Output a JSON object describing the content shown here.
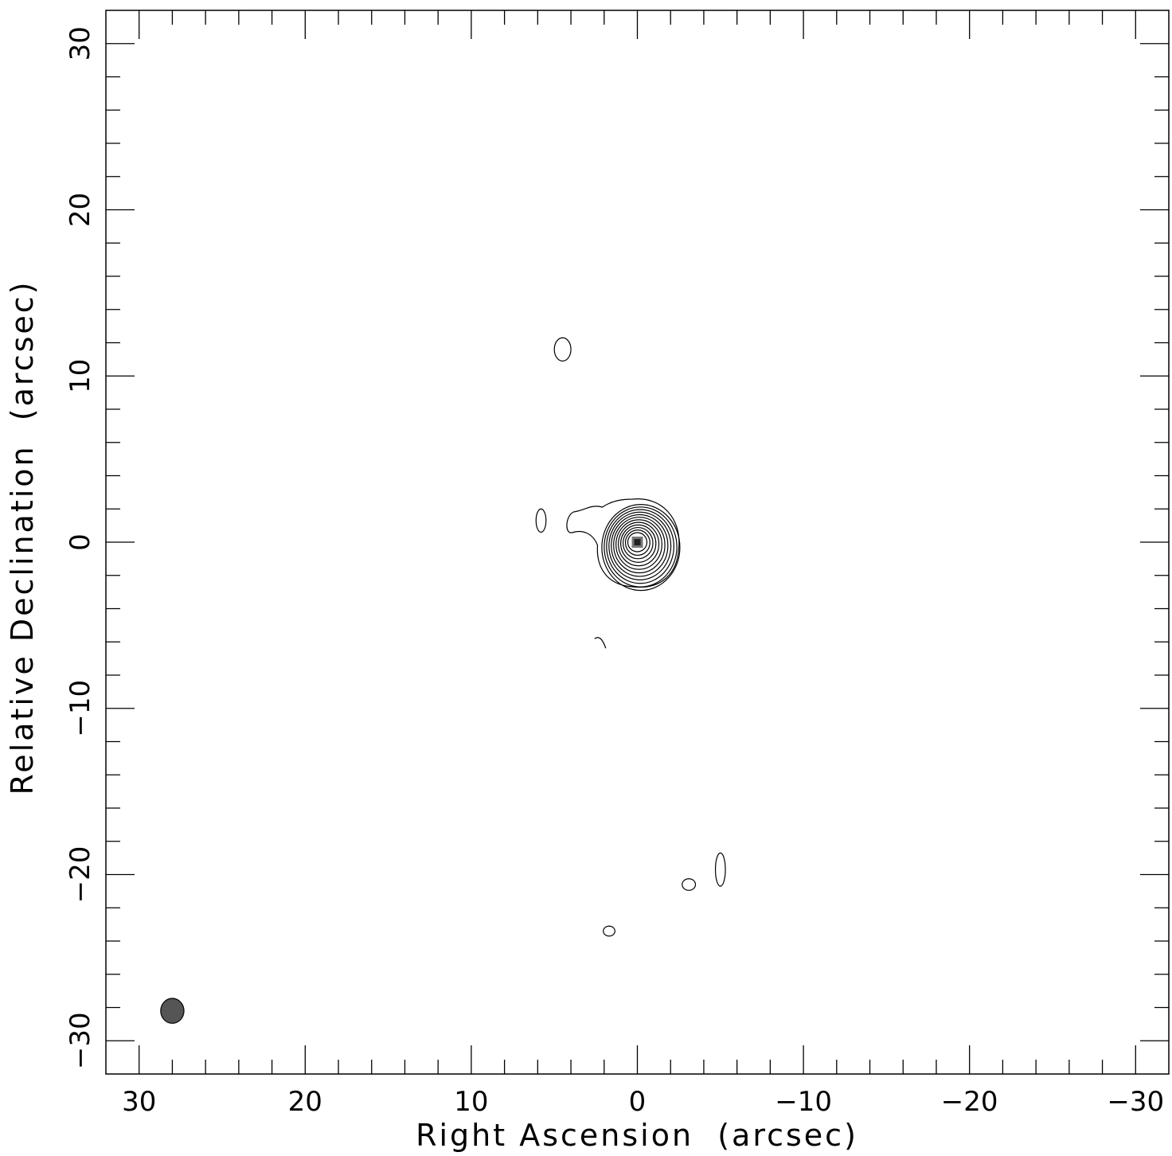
{
  "chart_data": {
    "type": "contour",
    "xlabel": "Right Ascension  (arcsec)",
    "ylabel": "Relative Declination  (arcsec)",
    "xlim": [
      32,
      -32
    ],
    "ylim": [
      -32,
      32
    ],
    "xticks": [
      30,
      20,
      10,
      0,
      -10,
      -20,
      -30
    ],
    "yticks": [
      30,
      20,
      10,
      0,
      -10,
      -20,
      -30
    ],
    "xtick_labels": [
      "30",
      "20",
      "10",
      "0",
      "−10",
      "−20",
      "−30"
    ],
    "ytick_labels": [
      "30",
      "20",
      "10",
      "0",
      "−10",
      "−20",
      "−30"
    ],
    "minor_tick_step": 2,
    "source": {
      "x": 0,
      "y": 0
    },
    "contour_levels": 12,
    "beam": {
      "x": 28,
      "y": -28.2,
      "major": 1.5,
      "minor": 1.4
    },
    "beam_color": "#555555",
    "features": [
      {
        "x": 4.5,
        "y": 11.6,
        "rx": 0.5,
        "ry": 0.7
      },
      {
        "x": 5.8,
        "y": 1.3,
        "rx": 0.3,
        "ry": 0.7
      },
      {
        "x": -3.1,
        "y": -20.6,
        "rx": 0.4,
        "ry": 0.35
      },
      {
        "x": -5.0,
        "y": -19.7,
        "rx": 0.3,
        "ry": 1.0
      },
      {
        "x": 1.7,
        "y": -23.4,
        "rx": 0.35,
        "ry": 0.3
      }
    ]
  }
}
